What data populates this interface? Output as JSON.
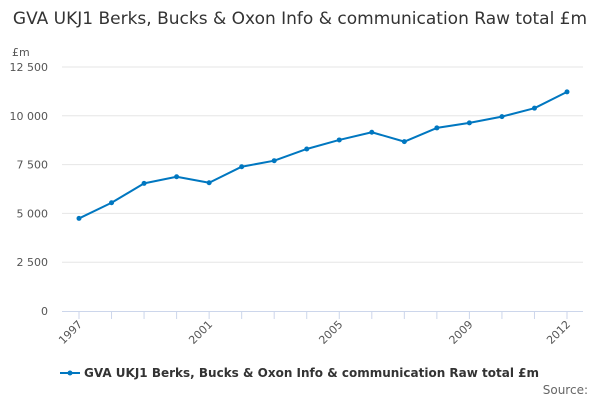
{
  "chart_data": {
    "type": "line",
    "title": "GVA UKJ1 Berks, Bucks & Oxon Info & communication Raw total £m",
    "ylabel": "£m",
    "xlabel": "",
    "ylim": [
      0,
      12500
    ],
    "yticks": [
      0,
      2500,
      5000,
      7500,
      10000,
      12500
    ],
    "ytick_labels": [
      "0",
      "2 500",
      "5 000",
      "7 500",
      "10 000",
      "12 500"
    ],
    "x": [
      1997,
      1998,
      1999,
      2000,
      2001,
      2002,
      2003,
      2004,
      2005,
      2006,
      2007,
      2008,
      2009,
      2010,
      2011,
      2012
    ],
    "xtick_labels": [
      "1997",
      "2001",
      "2005",
      "2009",
      "2012"
    ],
    "grid": true,
    "legend_placement": "bottom",
    "series": [
      {
        "name": "GVA UKJ1 Berks, Bucks & Oxon Info & communication Raw total £m",
        "color": "#0077c0",
        "values": [
          4743,
          5544,
          6540,
          6879,
          6571,
          7392,
          7700,
          8300,
          8763,
          9158,
          8676,
          9379,
          9636,
          9959,
          10390,
          11227
        ]
      }
    ],
    "source_label": "Source:"
  }
}
